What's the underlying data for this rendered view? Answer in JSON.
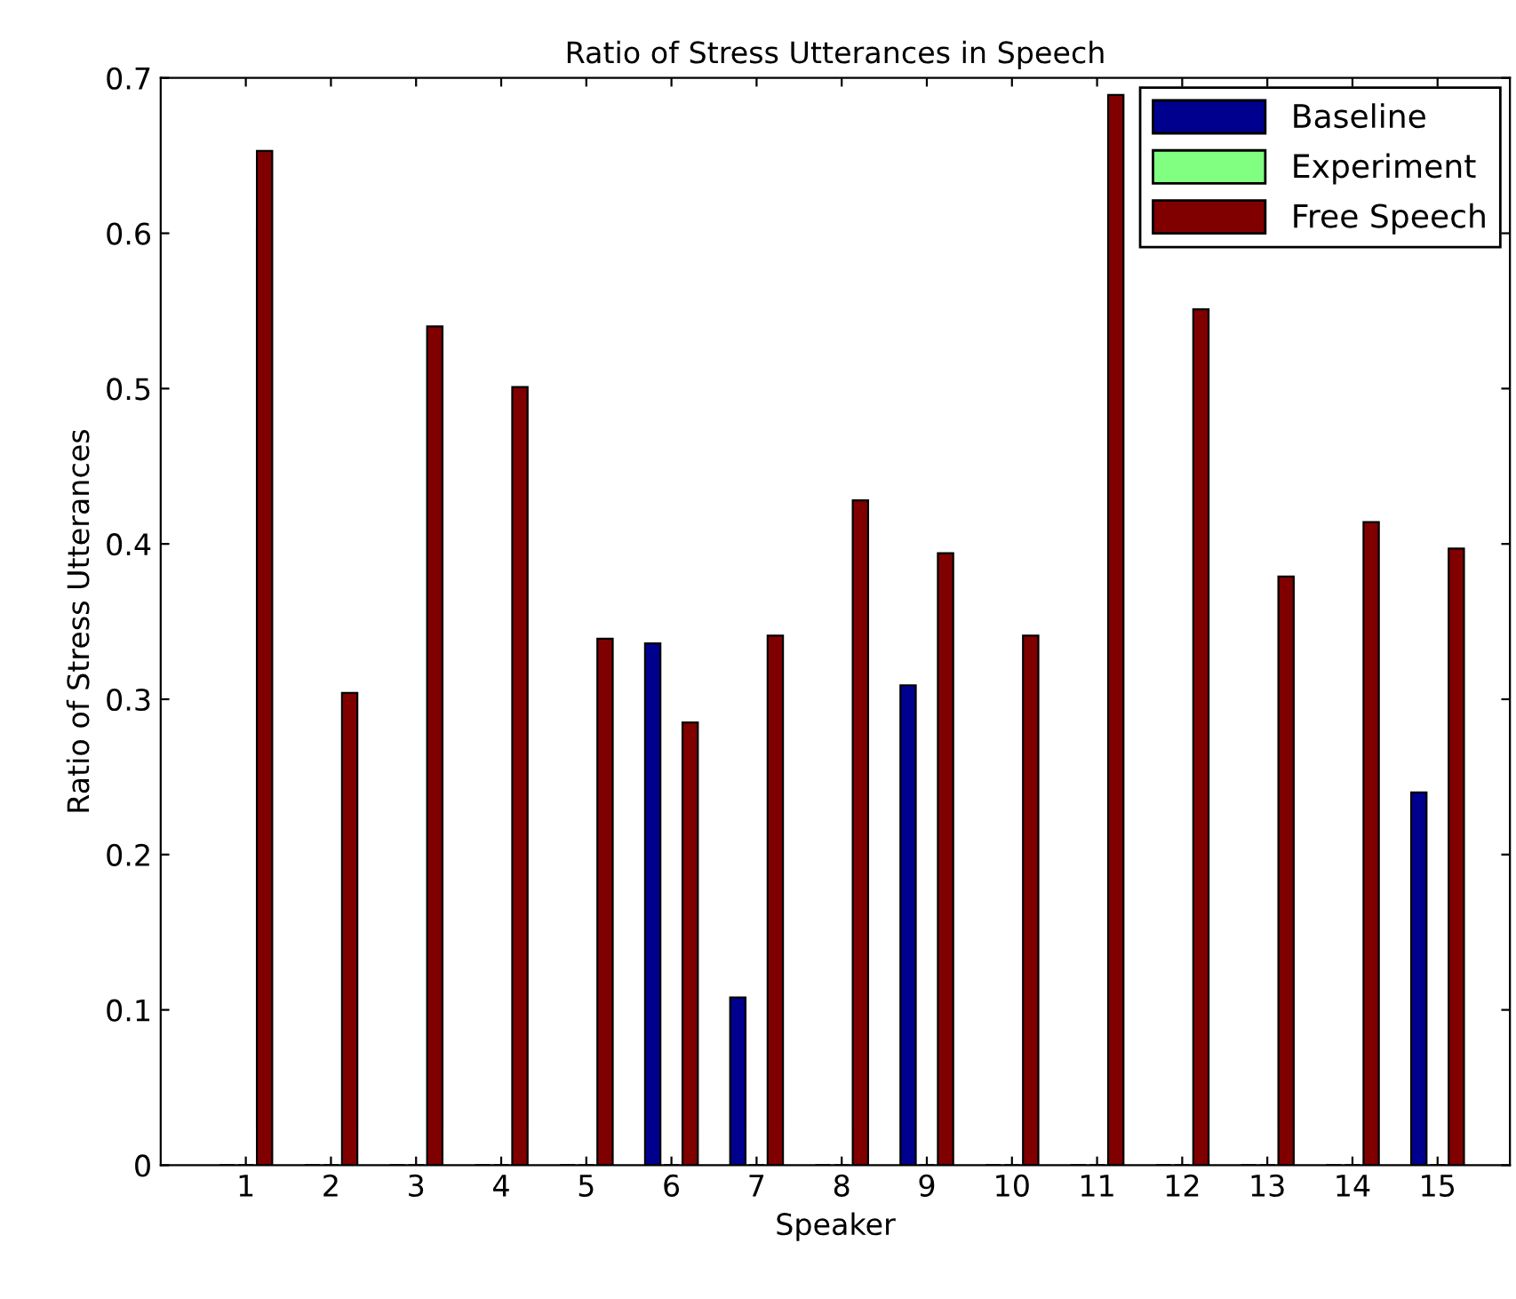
{
  "chart_data": {
    "type": "bar",
    "title": "Ratio of Stress Utterances in Speech",
    "xlabel": "Speaker",
    "ylabel": "Ratio of Stress Utterances",
    "categories": [
      "1",
      "2",
      "3",
      "4",
      "5",
      "6",
      "7",
      "8",
      "9",
      "10",
      "11",
      "12",
      "13",
      "14",
      "15"
    ],
    "series": [
      {
        "name": "Baseline",
        "color": "#00008f",
        "values": [
          0,
          0,
          0,
          0,
          0,
          0.336,
          0.108,
          0,
          0.309,
          0,
          0,
          0,
          0,
          0,
          0.24
        ]
      },
      {
        "name": "Experiment",
        "color": "#80ff80",
        "values": [
          0,
          0,
          0,
          0,
          0,
          0,
          0,
          0,
          0,
          0,
          0,
          0,
          0,
          0,
          0
        ]
      },
      {
        "name": "Free Speech",
        "color": "#800000",
        "values": [
          0.653,
          0.304,
          0.54,
          0.501,
          0.339,
          0.285,
          0.341,
          0.428,
          0.394,
          0.341,
          0.689,
          0.551,
          0.379,
          0.414,
          0.397
        ]
      }
    ],
    "ylim": [
      0,
      0.7
    ],
    "yticks": [
      0,
      0.1,
      0.2,
      0.3,
      0.4,
      0.5,
      0.6,
      0.7
    ],
    "grid": false,
    "legend": "top right"
  }
}
